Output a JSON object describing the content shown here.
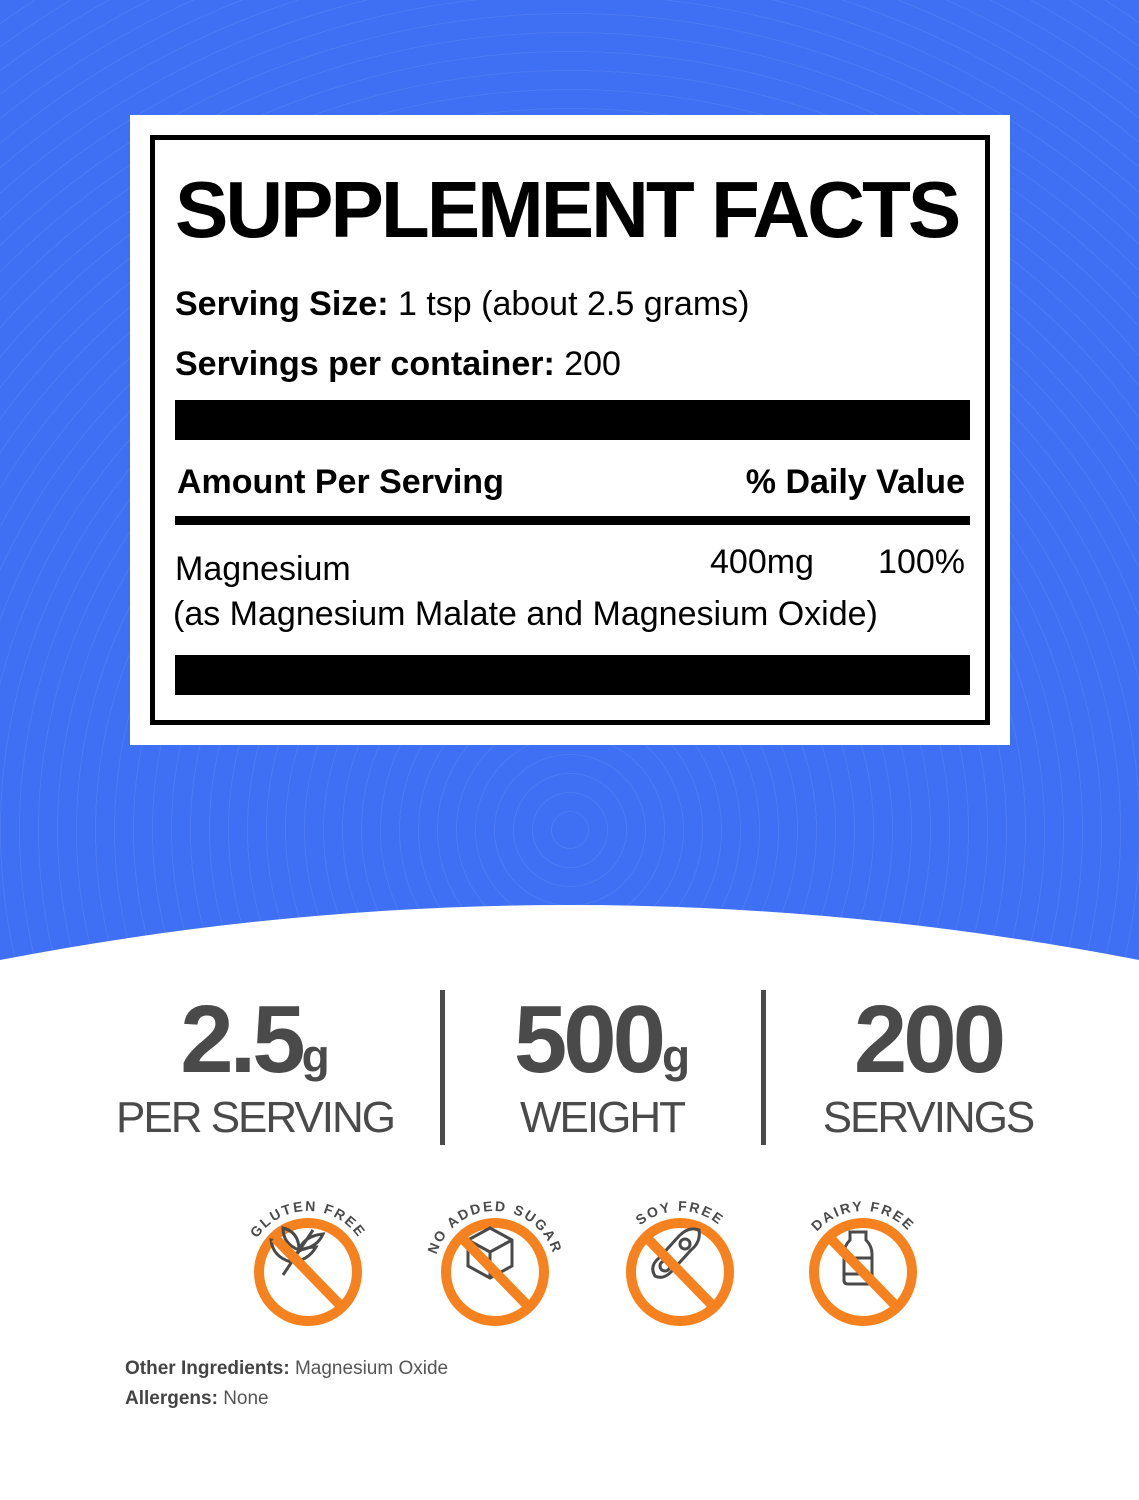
{
  "label": {
    "title": "SUPPLEMENT FACTS",
    "serving_size_label": "Serving Size:",
    "serving_size_value": "1 tsp (about 2.5 grams)",
    "servings_label": "Servings per container:",
    "servings_value": "200",
    "amount_header": "Amount Per Serving",
    "dv_header": "% Daily Value",
    "nutrient": "Magnesium",
    "nutrient_amount": "400mg",
    "nutrient_dv": "100%",
    "nutrient_source": "(as Magnesium Malate and Magnesium Oxide)"
  },
  "stats": [
    {
      "value": "2.5",
      "unit": "g",
      "caption": "PER SERVING"
    },
    {
      "value": "500",
      "unit": "g",
      "caption": "WEIGHT"
    },
    {
      "value": "200",
      "unit": "",
      "caption": "SERVINGS"
    }
  ],
  "badges": [
    {
      "label": "GLUTEN FREE",
      "icon": "wheat-icon"
    },
    {
      "label": "NO ADDED SUGAR",
      "icon": "sugar-cube-icon"
    },
    {
      "label": "SOY FREE",
      "icon": "soybean-icon"
    },
    {
      "label": "DAIRY FREE",
      "icon": "milk-bottle-icon"
    }
  ],
  "footer": {
    "ingredients_label": "Other Ingredients:",
    "ingredients_value": "Magnesium Oxide",
    "allergens_label": "Allergens:",
    "allergens_value": "None"
  },
  "colors": {
    "background": "#3f70f4",
    "badge": "#f5821f",
    "text": "#4a4a4a"
  }
}
